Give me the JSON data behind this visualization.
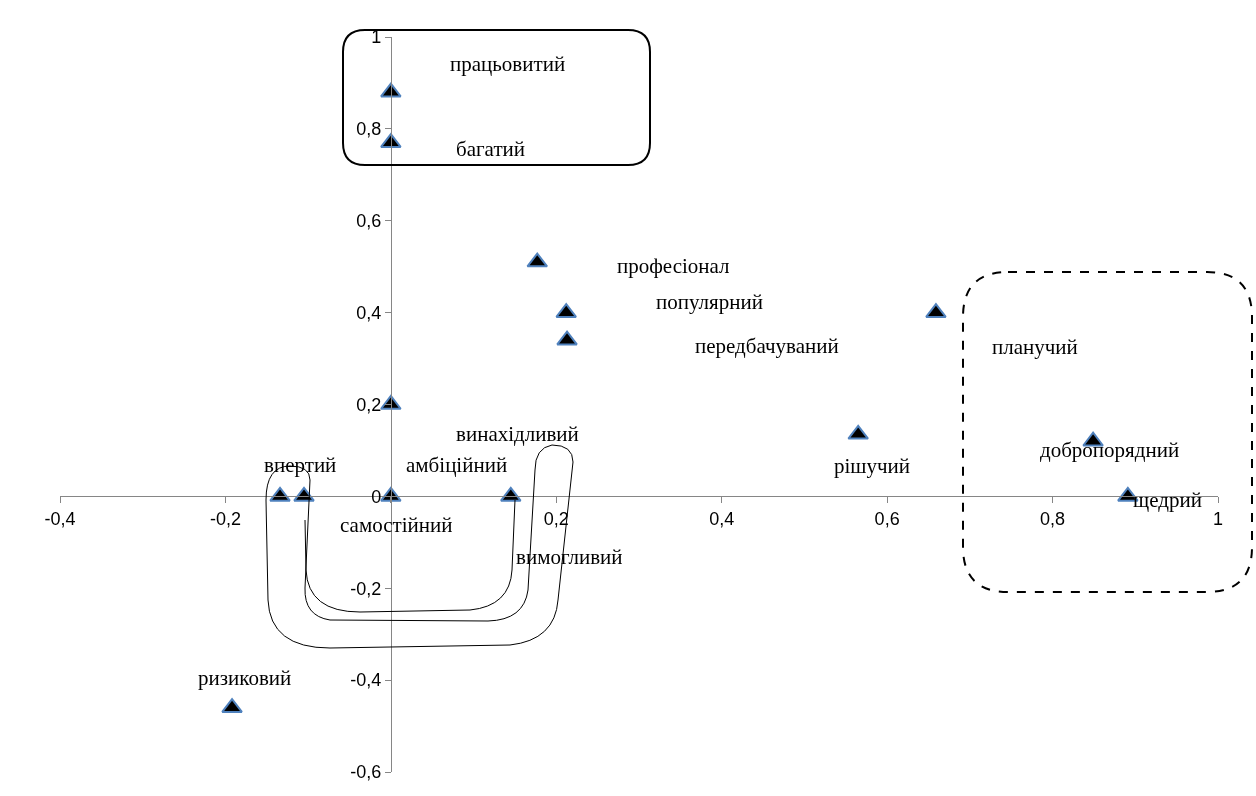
{
  "chart_data": {
    "type": "scatter",
    "marker": "triangle",
    "color": "#000000",
    "x": [
      0,
      0,
      0.177,
      0.212,
      0.213,
      0.659,
      0,
      0.565,
      0.849,
      0.891,
      0,
      0.145,
      -0.134,
      -0.105,
      -0.192
    ],
    "values": [
      0.88,
      0.77,
      0.51,
      0.4,
      0.34,
      0.4,
      0.2,
      0.135,
      0.12,
      0,
      0,
      0,
      0,
      0,
      -0.46
    ],
    "xlim": [
      -0.4,
      1
    ],
    "ylim": [
      -0.6,
      1
    ],
    "xticks": [
      {
        "value": -0.4,
        "label": "-0,4"
      },
      {
        "value": -0.2,
        "label": "-0,2"
      },
      {
        "value": 0,
        "label": null
      },
      {
        "value": 0.2,
        "label": "0,2"
      },
      {
        "value": 0.4,
        "label": "0,4"
      },
      {
        "value": 0.6,
        "label": "0,6"
      },
      {
        "value": 0.8,
        "label": "0,8"
      },
      1
    ],
    "yticks": [
      {
        "value": -0.6,
        "label": "-0,6"
      },
      {
        "value": -0.4,
        "label": "-0,4"
      },
      {
        "value": -0.2,
        "label": "-0,2"
      },
      0,
      {
        "value": 0.2,
        "label": "0,2"
      },
      {
        "value": 0.4,
        "label": "0,4"
      },
      {
        "value": 0.6,
        "label": "0,6"
      },
      {
        "value": 0.8,
        "label": "0,8"
      },
      1
    ],
    "annotations": [
      {
        "text": "працьовитий",
        "x": 0,
        "y": 0.88
      },
      "багатий",
      "професіонал",
      "популярний",
      "передбачуваний",
      {
        "text": "планучий",
        "x": 0.659,
        "y": 0.4
      },
      "винахідливий",
      {
        "text": "рішучий",
        "x": 0.565,
        "y": 0.135
      },
      {
        "text": "добропорядний",
        "x": 0.849,
        "y": 0.12
      },
      {
        "text": "щедрий",
        "x": 0.891,
        "y": 0
      },
      {
        "text": "амбіційний",
        "x": 0,
        "y": 0
      },
      {
        "text": "вимогливий",
        "x": 0.145,
        "y": 0
      },
      {
        "text": "впертий",
        "x": -0.134,
        "y": 0
      },
      {
        "text": "самостійний",
        "x": -0.105,
        "y": 0
      },
      {
        "text": "ризиковий",
        "x": -0.192,
        "y": -0.46
      }
    ]
  }
}
